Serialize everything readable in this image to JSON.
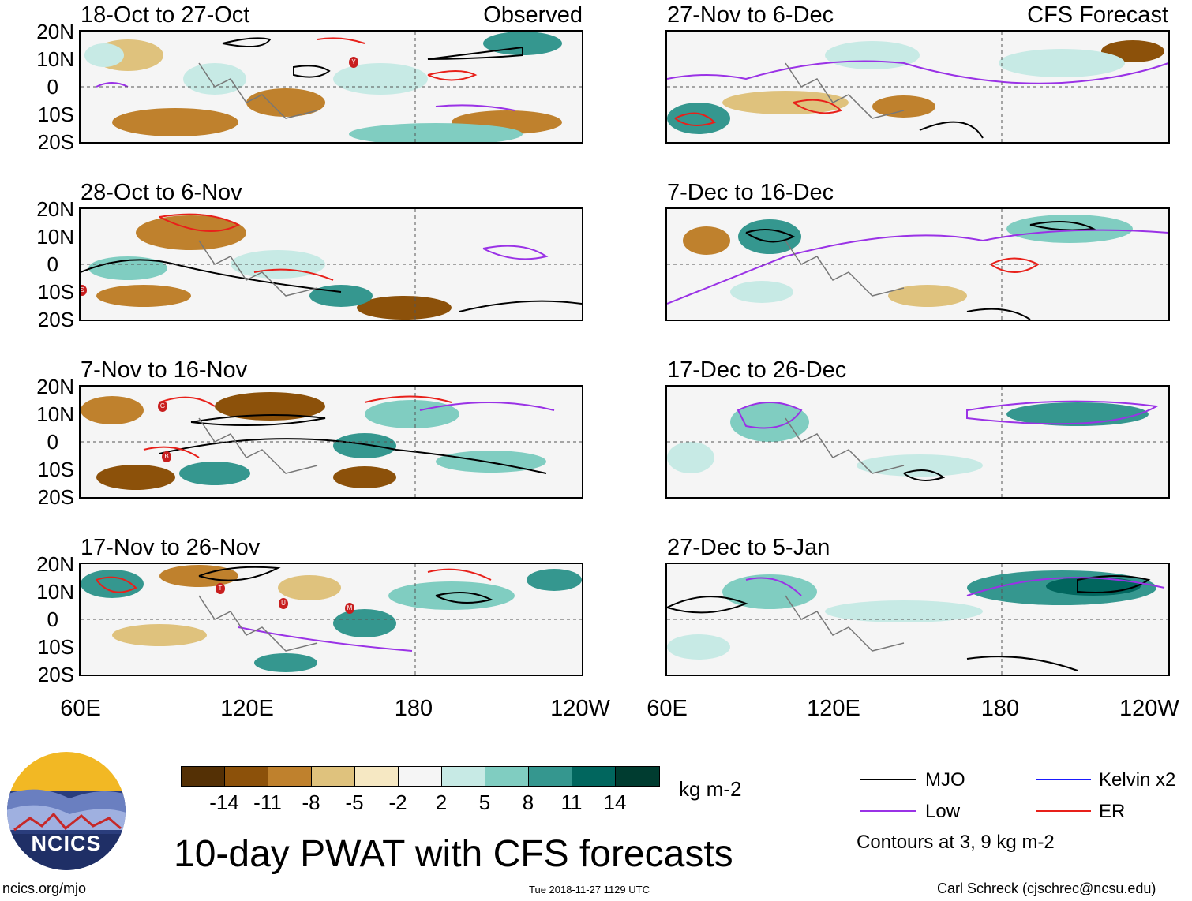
{
  "columns": {
    "left_label": "Observed",
    "right_label": "CFS Forecast"
  },
  "panels": [
    {
      "title": "18-Oct to 27-Oct"
    },
    {
      "title": "27-Nov to 6-Dec"
    },
    {
      "title": "28-Oct to 6-Nov"
    },
    {
      "title": "7-Dec to 16-Dec"
    },
    {
      "title": "7-Nov to 16-Nov"
    },
    {
      "title": "17-Dec to 26-Dec"
    },
    {
      "title": "17-Nov to 26-Nov"
    },
    {
      "title": "27-Dec to 5-Jan"
    }
  ],
  "axes": {
    "y_ticks": [
      "20N",
      "10N",
      "0",
      "10S",
      "20S"
    ],
    "x_ticks": [
      "60E",
      "120E",
      "180",
      "120W"
    ]
  },
  "colorbar": {
    "colors": [
      "#543005",
      "#8c510a",
      "#bf812d",
      "#dfc27d",
      "#f6e8c3",
      "#f5f5f5",
      "#c7eae5",
      "#80cdc1",
      "#35978f",
      "#01665e",
      "#003c30"
    ],
    "ticks": [
      "-14",
      "-11",
      "-8",
      "-5",
      "-2",
      "2",
      "5",
      "8",
      "11",
      "14"
    ],
    "units": "kg m-2"
  },
  "title": "10-day PWAT with CFS forecasts",
  "legend": {
    "items": [
      {
        "label": "MJO",
        "color": "#000000"
      },
      {
        "label": "Kelvin x2",
        "color": "#1a1aff"
      },
      {
        "label": "Low",
        "color": "#9a32e6"
      },
      {
        "label": "ER",
        "color": "#e8201a"
      }
    ],
    "note": "Contours at 3, 9 kg m-2"
  },
  "logo": {
    "text": "NCICS"
  },
  "footer": {
    "left": "ncics.org/mjo",
    "center": "Tue 2018-11-27 1129 UTC",
    "right": "Carl Schreck (cjschrec@ncsu.edu)"
  },
  "storm_markers": {
    "panel0": [
      "Y"
    ],
    "panel2": [
      "S"
    ],
    "panel4": [
      "G",
      "B"
    ],
    "panel6": [
      "T",
      "U",
      "M"
    ]
  }
}
